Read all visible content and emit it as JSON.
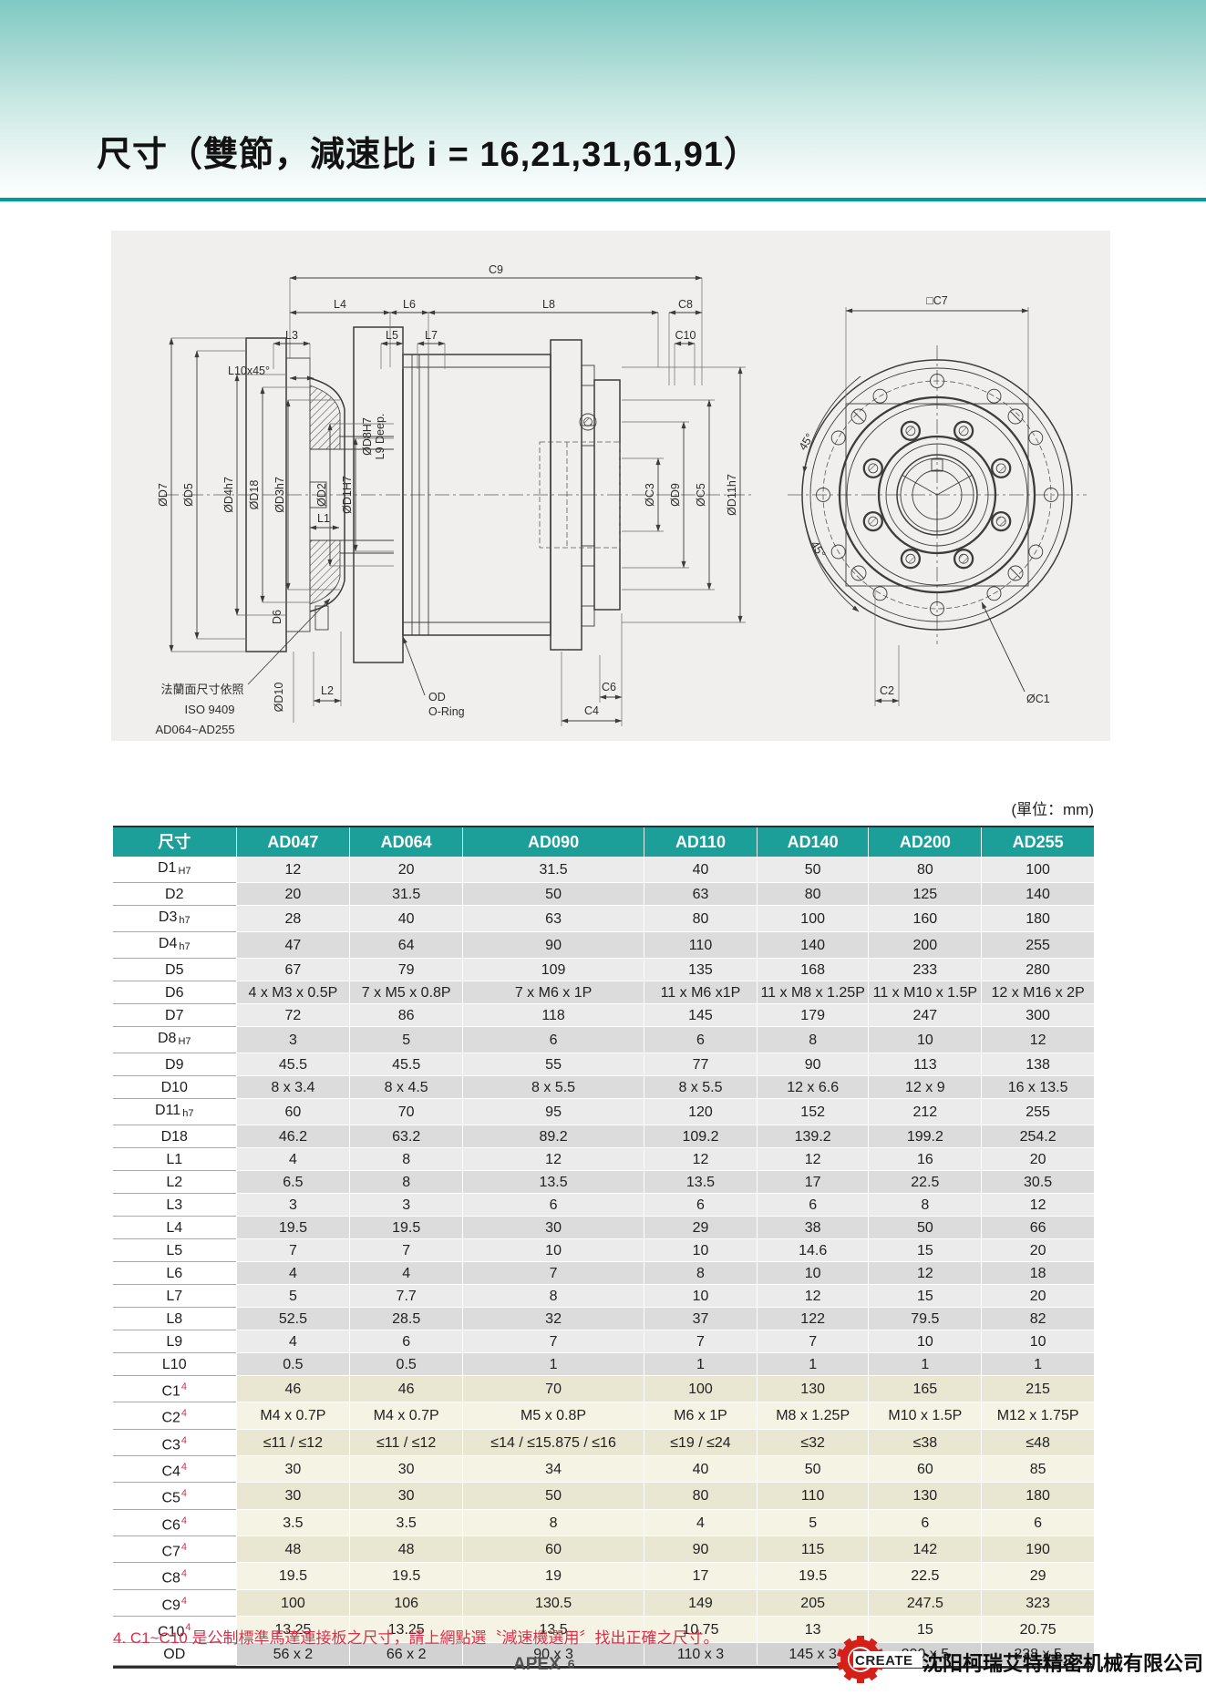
{
  "page": {
    "title": "尺寸（雙節，減速比 i = 16,21,31,61,91）",
    "unit_note": "(單位：mm)",
    "footnote": "4. C1~C10 是公制標準馬達連接板之尺寸，請上網點選〝減速機選用〞找出正確之尺寸。",
    "footer": {
      "page_label": "APEX",
      "page_number": "6",
      "logo_text": "CREATE",
      "company": "沈阳柯瑞艾特精密机械有限公司"
    }
  },
  "colors": {
    "header_teal": "#1c9f98",
    "divider_teal": "#009c95",
    "footnote_red": "#d9304a",
    "logo_red": "#d42018"
  },
  "drawing": {
    "labels": {
      "c9": "C9",
      "l4": "L4",
      "l6": "L6",
      "l8": "L8",
      "c8": "C8",
      "l3": "L3",
      "l5": "L5",
      "l7": "L7",
      "c10": "C10",
      "l10": "L10x45°",
      "d7": "ØD7",
      "d5": "ØD5",
      "d4": "ØD4h7",
      "d18": "ØD18",
      "d3": "ØD3h7",
      "d2": "ØD2",
      "d1": "ØD1H7",
      "d8": "ØD8H7",
      "l9": "L9 Deep.",
      "l1": "L1",
      "d6": "D6",
      "d10": "ØD10",
      "l2": "L2",
      "od": "OD",
      "oring": "O-Ring",
      "c6": "C6",
      "c4": "C4",
      "c3": "ØC3",
      "d9": "ØD9",
      "c5": "ØC5",
      "d11": "ØD11h7",
      "c7": "□C7",
      "deg45_top": "45°",
      "deg45_bottom": "45°",
      "c2": "C2",
      "c1": "ØC1",
      "flange_note_1": "法蘭面尺寸依照",
      "flange_note_2": "ISO 9409",
      "flange_note_3": "AD064~AD255"
    }
  },
  "table": {
    "header": [
      "尺寸",
      "AD047",
      "AD064",
      "AD090",
      "AD110",
      "AD140",
      "AD200",
      "AD255"
    ],
    "rows": [
      {
        "label": "D1",
        "sub": "H7",
        "group": "DL",
        "values": [
          "12",
          "20",
          "31.5",
          "40",
          "50",
          "80",
          "100"
        ]
      },
      {
        "label": "D2",
        "group": "DL",
        "values": [
          "20",
          "31.5",
          "50",
          "63",
          "80",
          "125",
          "140"
        ]
      },
      {
        "label": "D3",
        "sub": "h7",
        "group": "DL",
        "values": [
          "28",
          "40",
          "63",
          "80",
          "100",
          "160",
          "180"
        ]
      },
      {
        "label": "D4",
        "sub": "h7",
        "group": "DL",
        "values": [
          "47",
          "64",
          "90",
          "110",
          "140",
          "200",
          "255"
        ]
      },
      {
        "label": "D5",
        "group": "DL",
        "values": [
          "67",
          "79",
          "109",
          "135",
          "168",
          "233",
          "280"
        ]
      },
      {
        "label": "D6",
        "group": "DL",
        "values": [
          "4 x M3 x 0.5P",
          "7 x M5 x 0.8P",
          "7 x M6 x 1P",
          "11 x M6 x1P",
          "11 x M8 x 1.25P",
          "11 x M10 x 1.5P",
          "12 x M16 x 2P"
        ]
      },
      {
        "label": "D7",
        "group": "DL",
        "values": [
          "72",
          "86",
          "118",
          "145",
          "179",
          "247",
          "300"
        ]
      },
      {
        "label": "D8",
        "sub": "H7",
        "group": "DL",
        "values": [
          "3",
          "5",
          "6",
          "6",
          "8",
          "10",
          "12"
        ]
      },
      {
        "label": "D9",
        "group": "DL",
        "values": [
          "45.5",
          "45.5",
          "55",
          "77",
          "90",
          "113",
          "138"
        ]
      },
      {
        "label": "D10",
        "group": "DL",
        "values": [
          "8 x 3.4",
          "8 x 4.5",
          "8 x 5.5",
          "8 x 5.5",
          "12 x 6.6",
          "12 x 9",
          "16 x 13.5"
        ]
      },
      {
        "label": "D11",
        "sub": "h7",
        "group": "DL",
        "values": [
          "60",
          "70",
          "95",
          "120",
          "152",
          "212",
          "255"
        ]
      },
      {
        "label": "D18",
        "group": "DL",
        "values": [
          "46.2",
          "63.2",
          "89.2",
          "109.2",
          "139.2",
          "199.2",
          "254.2"
        ]
      },
      {
        "label": "L1",
        "group": "DL",
        "values": [
          "4",
          "8",
          "12",
          "12",
          "12",
          "16",
          "20"
        ]
      },
      {
        "label": "L2",
        "group": "DL",
        "values": [
          "6.5",
          "8",
          "13.5",
          "13.5",
          "17",
          "22.5",
          "30.5"
        ]
      },
      {
        "label": "L3",
        "group": "DL",
        "values": [
          "3",
          "3",
          "6",
          "6",
          "6",
          "8",
          "12"
        ]
      },
      {
        "label": "L4",
        "group": "DL",
        "values": [
          "19.5",
          "19.5",
          "30",
          "29",
          "38",
          "50",
          "66"
        ]
      },
      {
        "label": "L5",
        "group": "DL",
        "values": [
          "7",
          "7",
          "10",
          "10",
          "14.6",
          "15",
          "20"
        ]
      },
      {
        "label": "L6",
        "group": "DL",
        "values": [
          "4",
          "4",
          "7",
          "8",
          "10",
          "12",
          "18"
        ]
      },
      {
        "label": "L7",
        "group": "DL",
        "values": [
          "5",
          "7.7",
          "8",
          "10",
          "12",
          "15",
          "20"
        ]
      },
      {
        "label": "L8",
        "group": "DL",
        "values": [
          "52.5",
          "28.5",
          "32",
          "37",
          "122",
          "79.5",
          "82"
        ]
      },
      {
        "label": "L9",
        "group": "DL",
        "values": [
          "4",
          "6",
          "7",
          "7",
          "7",
          "10",
          "10"
        ]
      },
      {
        "label": "L10",
        "group": "DL",
        "values": [
          "0.5",
          "0.5",
          "1",
          "1",
          "1",
          "1",
          "1"
        ]
      },
      {
        "label": "C1",
        "sup": "4",
        "group": "C",
        "values": [
          "46",
          "46",
          "70",
          "100",
          "130",
          "165",
          "215"
        ]
      },
      {
        "label": "C2",
        "sup": "4",
        "group": "C",
        "values": [
          "M4 x 0.7P",
          "M4 x 0.7P",
          "M5 x 0.8P",
          "M6 x 1P",
          "M8 x 1.25P",
          "M10 x 1.5P",
          "M12 x 1.75P"
        ]
      },
      {
        "label": "C3",
        "sup": "4",
        "group": "C",
        "values": [
          "≤11 / ≤12",
          "≤11 / ≤12",
          "≤14 / ≤15.875 / ≤16",
          "≤19 / ≤24",
          "≤32",
          "≤38",
          "≤48"
        ]
      },
      {
        "label": "C4",
        "sup": "4",
        "group": "C",
        "values": [
          "30",
          "30",
          "34",
          "40",
          "50",
          "60",
          "85"
        ]
      },
      {
        "label": "C5",
        "sup": "4",
        "group": "C",
        "values": [
          "30",
          "30",
          "50",
          "80",
          "110",
          "130",
          "180"
        ]
      },
      {
        "label": "C6",
        "sup": "4",
        "group": "C",
        "values": [
          "3.5",
          "3.5",
          "8",
          "4",
          "5",
          "6",
          "6"
        ]
      },
      {
        "label": "C7",
        "sup": "4",
        "group": "C",
        "values": [
          "48",
          "48",
          "60",
          "90",
          "115",
          "142",
          "190"
        ]
      },
      {
        "label": "C8",
        "sup": "4",
        "group": "C",
        "values": [
          "19.5",
          "19.5",
          "19",
          "17",
          "19.5",
          "22.5",
          "29"
        ]
      },
      {
        "label": "C9",
        "sup": "4",
        "group": "C",
        "values": [
          "100",
          "106",
          "130.5",
          "149",
          "205",
          "247.5",
          "323"
        ]
      },
      {
        "label": "C10",
        "sup": "4",
        "group": "C",
        "values": [
          "13.25",
          "13.25",
          "13.5",
          "10.75",
          "13",
          "15",
          "20.75"
        ]
      },
      {
        "label": "OD",
        "group": "OD",
        "values": [
          "56 x 2",
          "66 x 2",
          "90 x 3",
          "110 x 3",
          "145 x 3",
          "200 x 5",
          "238 x 5"
        ]
      }
    ]
  }
}
